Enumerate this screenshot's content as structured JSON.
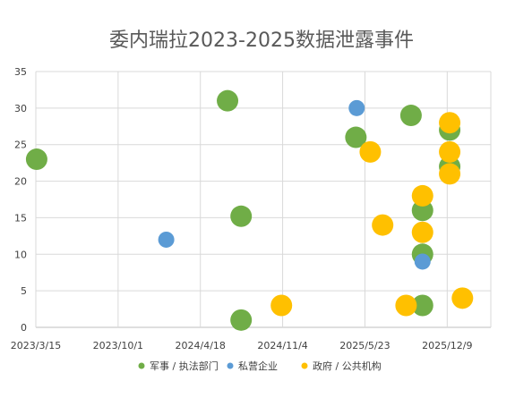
{
  "chart_data": {
    "type": "scatter",
    "title": "委内瑞拉2023-2025数据泄露事件",
    "xlabel": "",
    "ylabel": "",
    "x_ticks": [
      "2023/3/15",
      "2023/10/1",
      "2024/4/18",
      "2024/11/4",
      "2025/5/23",
      "2025/12/9"
    ],
    "xlim": [
      "2023/3/15",
      "2026/3/25"
    ],
    "ylim": [
      0,
      35
    ],
    "y_ticks": [
      0,
      5,
      10,
      15,
      20,
      25,
      30,
      35
    ],
    "grid": true,
    "legend_position": "bottom",
    "series": [
      {
        "name": "军事 / 执法部门",
        "color": "#70ad47",
        "points": [
          {
            "x": "2023/3/17",
            "y": 23
          },
          {
            "x": "2024/6/23",
            "y": 31
          },
          {
            "x": "2024/7/26",
            "y": 15.2
          },
          {
            "x": "2024/7/26",
            "y": 1
          },
          {
            "x": "2025/5/1",
            "y": 26
          },
          {
            "x": "2025/9/12",
            "y": 29
          },
          {
            "x": "2025/10/10",
            "y": 16
          },
          {
            "x": "2025/10/10",
            "y": 10
          },
          {
            "x": "2025/10/10",
            "y": 3
          },
          {
            "x": "2025/12/15",
            "y": 27
          },
          {
            "x": "2025/12/15",
            "y": 22
          }
        ]
      },
      {
        "name": "私营企业",
        "color": "#5b9bd5",
        "points": [
          {
            "x": "2024/1/26",
            "y": 12
          },
          {
            "x": "2025/5/3",
            "y": 30
          },
          {
            "x": "2025/10/10",
            "y": 9
          }
        ]
      },
      {
        "name": "政府 / 公共机构",
        "color": "#ffc000",
        "points": [
          {
            "x": "2024/11/1",
            "y": 3
          },
          {
            "x": "2025/6/5",
            "y": 24
          },
          {
            "x": "2025/7/5",
            "y": 14
          },
          {
            "x": "2025/8/31",
            "y": 3
          },
          {
            "x": "2025/10/10",
            "y": 18
          },
          {
            "x": "2025/10/10",
            "y": 13
          },
          {
            "x": "2025/12/15",
            "y": 28
          },
          {
            "x": "2025/12/15",
            "y": 24
          },
          {
            "x": "2025/12/15",
            "y": 21
          },
          {
            "x": "2026/1/15",
            "y": 4
          }
        ]
      }
    ]
  }
}
